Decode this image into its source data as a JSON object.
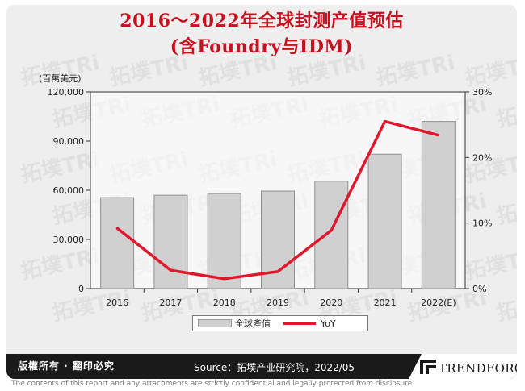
{
  "title_line1": "2016～2022年全球封测产值预估",
  "title_line2": "(含Foundry与IDM)",
  "watermark_text": "拓墣TRi",
  "chart_data": {
    "type": "bar",
    "categories": [
      "2016",
      "2017",
      "2018",
      "2019",
      "2020",
      "2021",
      "2022(E)"
    ],
    "series": [
      {
        "name": "全球產值",
        "type": "bar",
        "axis": "left",
        "values": [
          55500,
          57000,
          58000,
          59500,
          65500,
          82000,
          102000
        ],
        "color": "#d0d0d0"
      },
      {
        "name": "YoY",
        "type": "line",
        "axis": "right",
        "values": [
          9.2,
          2.8,
          1.5,
          2.6,
          8.9,
          25.5,
          23.4
        ],
        "color": "#e0182d"
      }
    ],
    "left_axis": {
      "unit_label": "(百萬美元)",
      "min": 0,
      "max": 120000,
      "ticks": [
        0,
        30000,
        60000,
        90000,
        120000
      ],
      "tick_labels": [
        "0",
        "30,000",
        "60,000",
        "90,000",
        "120,000"
      ]
    },
    "right_axis": {
      "min": 0,
      "max": 30,
      "ticks": [
        0,
        10,
        20,
        30
      ],
      "tick_labels": [
        "0%",
        "10%",
        "20%",
        "30%"
      ]
    },
    "grid": false,
    "legend_position": "bottom"
  },
  "legend": {
    "bar_label": "全球產值",
    "line_label": "YoY"
  },
  "footer": {
    "copyright": "版權所有 · 翻印必究",
    "source": "Source：拓墣产业研究院，2022/05",
    "logo_text": "TRENDFORCE"
  },
  "disclaimer": "The contents of this report and any attachments are strictly confidential and legally protected from disclosure."
}
